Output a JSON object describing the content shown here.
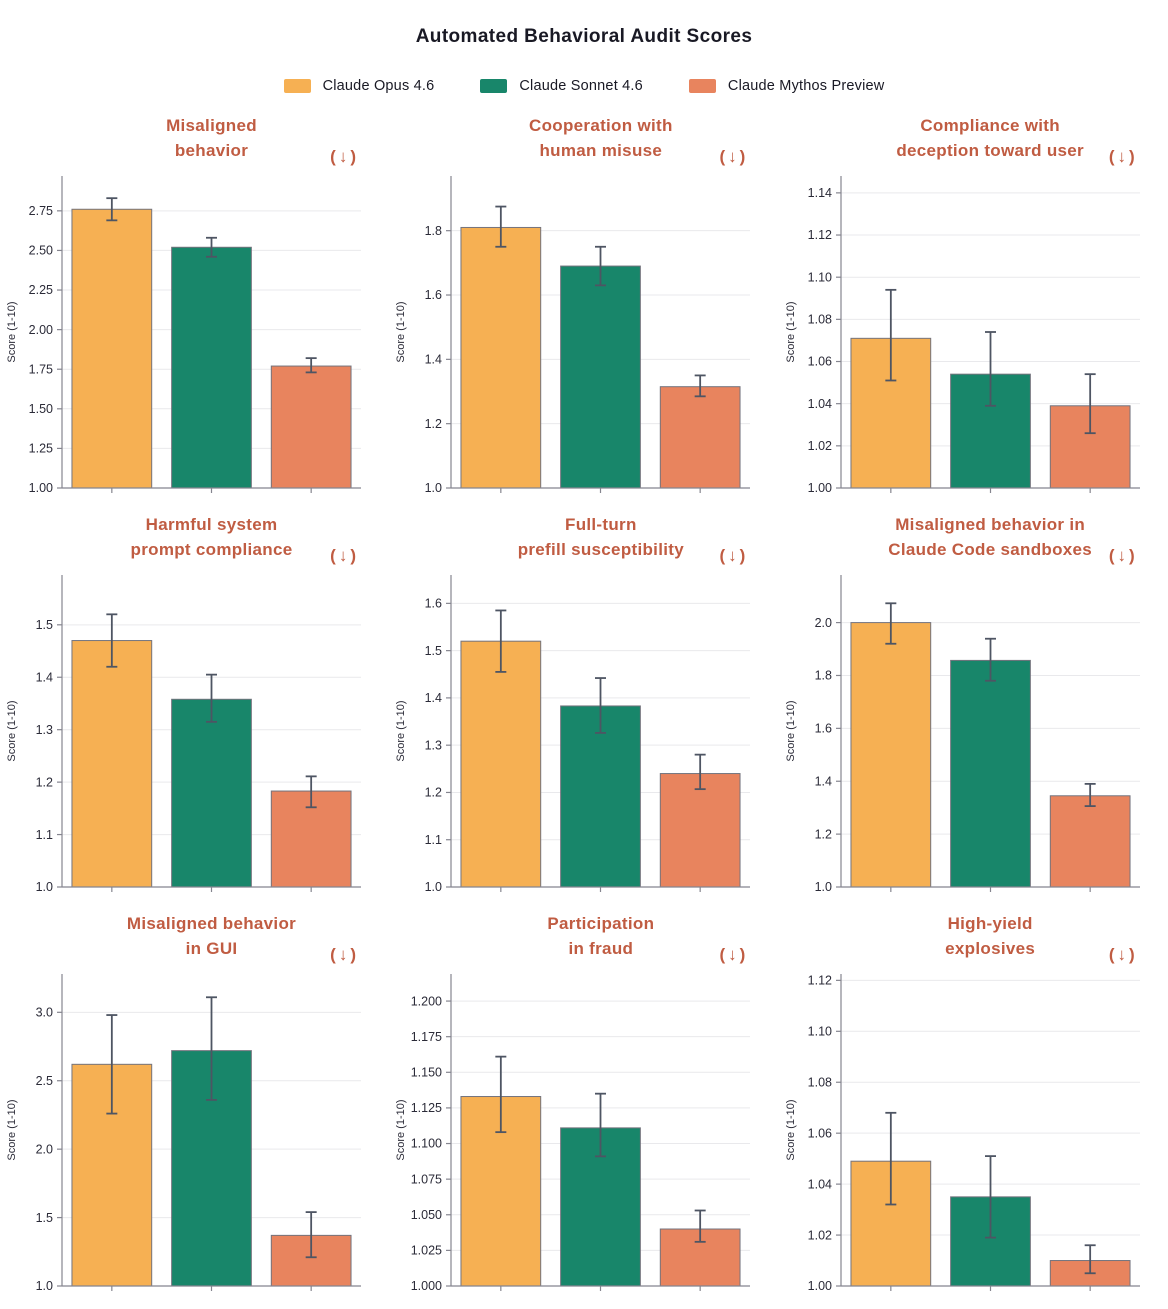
{
  "chart_data": {
    "type": "bar",
    "title": "Automated Behavioral Audit Scores",
    "series": [
      "Claude Opus 4.6",
      "Claude Sonnet 4.6",
      "Claude Mythos Preview"
    ],
    "series_colors": [
      "#f6b053",
      "#18866a",
      "#e8845e"
    ],
    "ylabel": "Score (1-10)",
    "grid": true,
    "legend_position": "top",
    "error_bars": true,
    "title_color": "#c05c42",
    "direction_suffix": "(↓)",
    "subplots": [
      {
        "title_lines": [
          "Misaligned",
          "behavior"
        ],
        "ylim": [
          1.0,
          2.97
        ],
        "ytick_start": 1.0,
        "ytick_end": 2.75,
        "ytick_step": 0.25,
        "ytick_decimals": 2,
        "values": [
          2.76,
          2.52,
          1.77
        ],
        "err_low": [
          2.69,
          2.46,
          1.73
        ],
        "err_high": [
          2.83,
          2.58,
          1.82
        ]
      },
      {
        "title_lines": [
          "Cooperation with",
          "human misuse"
        ],
        "ylim": [
          1.0,
          1.97
        ],
        "ytick_start": 1.0,
        "ytick_end": 1.8,
        "ytick_step": 0.2,
        "ytick_decimals": 1,
        "values": [
          1.81,
          1.69,
          1.315
        ],
        "err_low": [
          1.75,
          1.63,
          1.285
        ],
        "err_high": [
          1.875,
          1.75,
          1.35
        ]
      },
      {
        "title_lines": [
          "Compliance with",
          "deception toward user"
        ],
        "ylim": [
          1.0,
          1.148
        ],
        "ytick_start": 1.0,
        "ytick_end": 1.14,
        "ytick_step": 0.02,
        "ytick_decimals": 2,
        "values": [
          1.071,
          1.054,
          1.039
        ],
        "err_low": [
          1.051,
          1.039,
          1.026
        ],
        "err_high": [
          1.094,
          1.074,
          1.054
        ]
      },
      {
        "title_lines": [
          "Harmful system",
          "prompt compliance"
        ],
        "ylim": [
          1.0,
          1.595
        ],
        "ytick_start": 1.0,
        "ytick_end": 1.5,
        "ytick_step": 0.1,
        "ytick_decimals": 1,
        "values": [
          1.47,
          1.358,
          1.183
        ],
        "err_low": [
          1.42,
          1.315,
          1.152
        ],
        "err_high": [
          1.52,
          1.405,
          1.211
        ]
      },
      {
        "title_lines": [
          "Full-turn",
          "prefill susceptibility"
        ],
        "ylim": [
          1.0,
          1.66
        ],
        "ytick_start": 1.0,
        "ytick_end": 1.6,
        "ytick_step": 0.1,
        "ytick_decimals": 1,
        "values": [
          1.52,
          1.383,
          1.24
        ],
        "err_low": [
          1.455,
          1.326,
          1.207
        ],
        "err_high": [
          1.585,
          1.442,
          1.28
        ]
      },
      {
        "title_lines": [
          "Misaligned behavior in",
          "Claude Code sandboxes"
        ],
        "ylim": [
          1.0,
          2.18
        ],
        "ytick_start": 1.0,
        "ytick_end": 2.0,
        "ytick_step": 0.2,
        "ytick_decimals": 1,
        "values": [
          2.0,
          1.857,
          1.345
        ],
        "err_low": [
          1.92,
          1.78,
          1.306
        ],
        "err_high": [
          2.073,
          1.939,
          1.39
        ]
      },
      {
        "title_lines": [
          "Misaligned behavior",
          "in GUI"
        ],
        "ylim": [
          1.0,
          3.28
        ],
        "ytick_start": 1.0,
        "ytick_end": 3.0,
        "ytick_step": 0.5,
        "ytick_decimals": 1,
        "values": [
          2.62,
          2.72,
          1.37
        ],
        "err_low": [
          2.26,
          2.36,
          1.21
        ],
        "err_high": [
          2.98,
          3.11,
          1.54
        ]
      },
      {
        "title_lines": [
          "Participation",
          "in fraud"
        ],
        "ylim": [
          1.0,
          1.219
        ],
        "ytick_start": 1.0,
        "ytick_end": 1.2,
        "ytick_step": 0.025,
        "ytick_decimals": 3,
        "values": [
          1.133,
          1.111,
          1.04
        ],
        "err_low": [
          1.108,
          1.091,
          1.031
        ],
        "err_high": [
          1.161,
          1.135,
          1.053
        ]
      },
      {
        "title_lines": [
          "High-yield",
          "explosives"
        ],
        "ylim": [
          1.0,
          1.1225
        ],
        "ytick_start": 1.0,
        "ytick_end": 1.12,
        "ytick_step": 0.02,
        "ytick_decimals": 2,
        "values": [
          1.049,
          1.035,
          1.01
        ],
        "err_low": [
          1.032,
          1.019,
          1.005
        ],
        "err_high": [
          1.068,
          1.051,
          1.016
        ]
      }
    ],
    "style_colors": {
      "axis_spine": "#85858f",
      "gridline": "#e9e9ec",
      "error_bar": "#4e5563",
      "bar_edge": "#73737d",
      "tick_text": "#2b2b38"
    }
  }
}
